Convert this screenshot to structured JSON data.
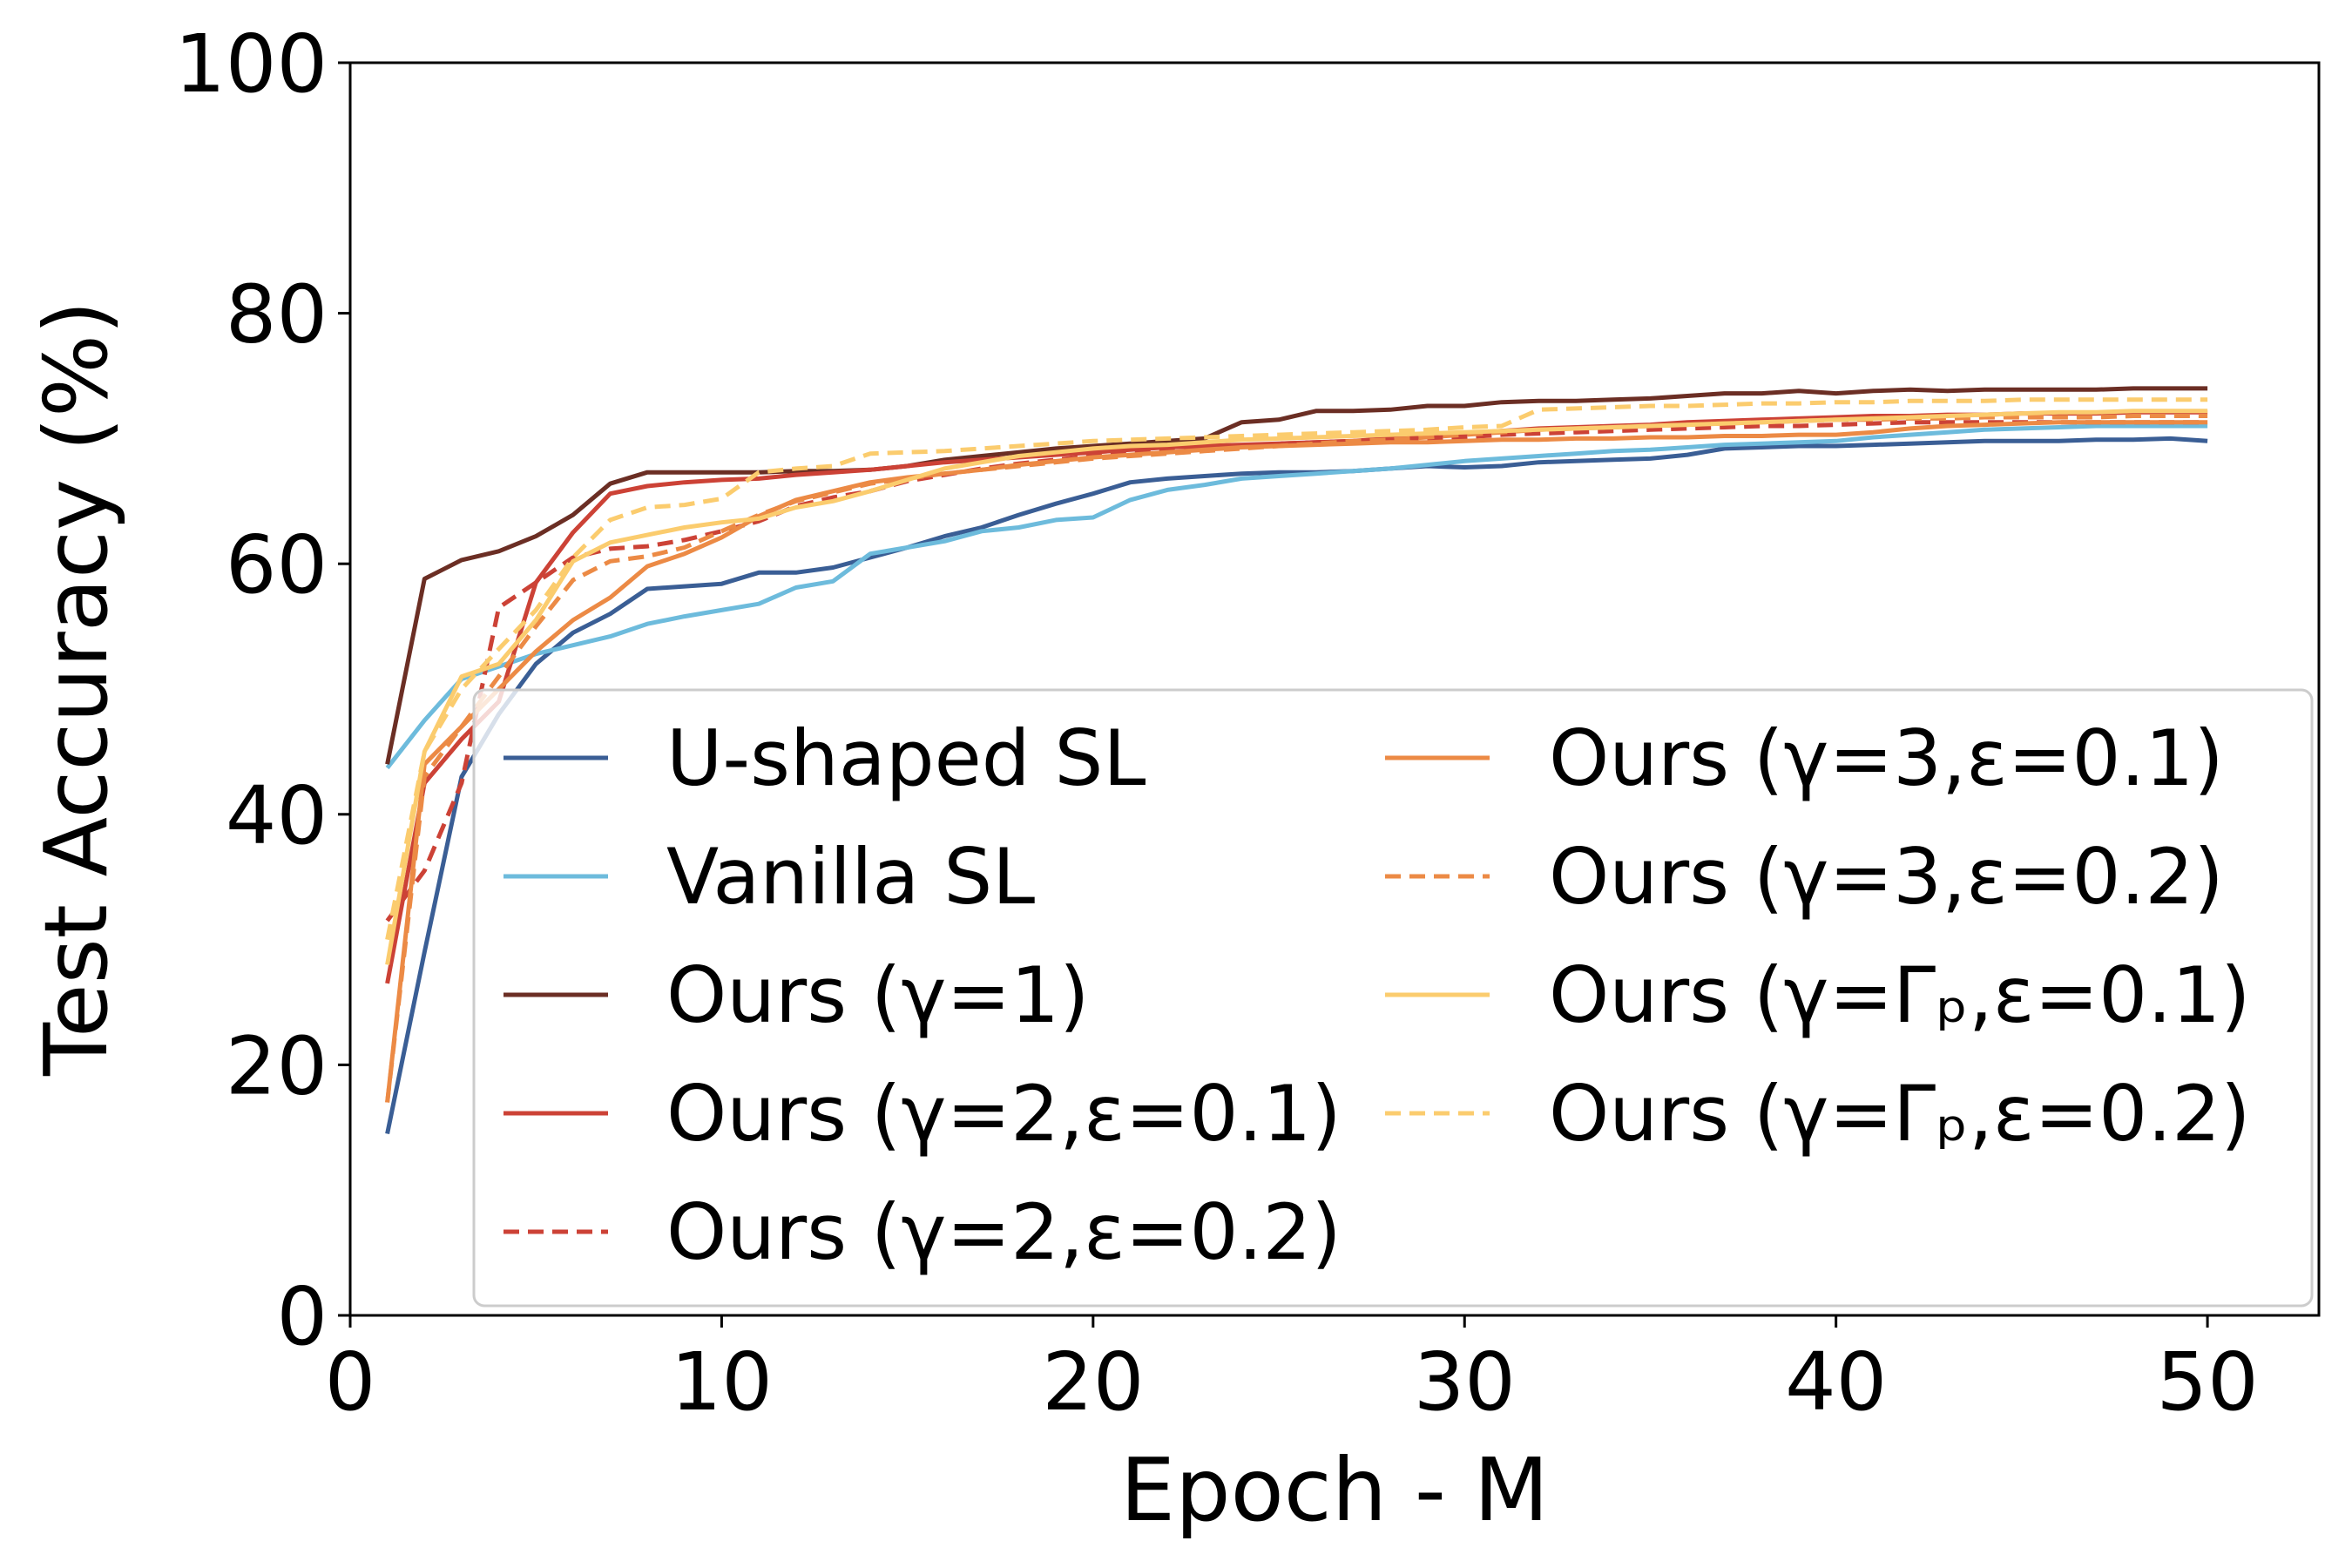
{
  "chart_data": {
    "type": "line",
    "title": "",
    "xlabel": "Epoch - M",
    "ylabel": "Test Accuracy (%)",
    "xlim": [
      0,
      53
    ],
    "ylim": [
      0,
      100
    ],
    "xticks": [
      0,
      10,
      20,
      30,
      40,
      50
    ],
    "yticks": [
      0,
      20,
      40,
      60,
      80,
      100
    ],
    "grid": false,
    "legend_position": "lower-right, two columns",
    "x": [
      1,
      2,
      3,
      4,
      5,
      6,
      7,
      8,
      9,
      10,
      11,
      12,
      13,
      14,
      15,
      16,
      17,
      18,
      19,
      20,
      21,
      22,
      23,
      24,
      25,
      26,
      27,
      28,
      29,
      30,
      31,
      32,
      33,
      34,
      35,
      36,
      37,
      38,
      39,
      40,
      41,
      42,
      43,
      44,
      45,
      46,
      47,
      48,
      49,
      50
    ],
    "series": [
      {
        "name": "U-shaped SL",
        "color": "#3a5e95",
        "dash": "solid",
        "values": [
          14.5,
          29,
          43,
          48,
          52,
          54.5,
          56,
          58,
          58.2,
          58.4,
          59.3,
          59.3,
          59.7,
          60.5,
          61.3,
          62.2,
          62.9,
          63.9,
          64.8,
          65.6,
          66.5,
          66.8,
          67,
          67.2,
          67.3,
          67.3,
          67.4,
          67.6,
          67.8,
          67.7,
          67.8,
          68.1,
          68.2,
          68.3,
          68.4,
          68.7,
          69.2,
          69.3,
          69.4,
          69.4,
          69.5,
          69.6,
          69.7,
          69.8,
          69.8,
          69.8,
          69.9,
          69.9,
          70,
          69.8
        ]
      },
      {
        "name": "Vanilla SL",
        "color": "#6dbbdc",
        "dash": "solid",
        "values": [
          43.7,
          47.5,
          50.8,
          51.8,
          52.8,
          53.5,
          54.2,
          55.2,
          55.8,
          56.3,
          56.8,
          58.1,
          58.6,
          60.8,
          61.3,
          61.8,
          62.6,
          62.9,
          63.5,
          63.7,
          65.1,
          65.9,
          66.3,
          66.8,
          67,
          67.2,
          67.4,
          67.6,
          67.9,
          68.2,
          68.4,
          68.6,
          68.8,
          69,
          69.1,
          69.3,
          69.5,
          69.6,
          69.7,
          69.8,
          70.1,
          70.3,
          70.5,
          70.7,
          70.8,
          70.9,
          71,
          71,
          71,
          71
        ]
      },
      {
        "name": "Ours (γ=1)",
        "color": "#6b2e24",
        "dash": "solid",
        "values": [
          44,
          58.8,
          60.3,
          61,
          62.2,
          63.9,
          66.4,
          67.3,
          67.3,
          67.3,
          67.3,
          67.4,
          67.4,
          67.5,
          67.8,
          68.3,
          68.6,
          68.9,
          69.2,
          69.4,
          69.6,
          69.8,
          70,
          71.3,
          71.5,
          72.2,
          72.2,
          72.3,
          72.6,
          72.6,
          72.9,
          73,
          73,
          73.1,
          73.2,
          73.4,
          73.6,
          73.6,
          73.8,
          73.6,
          73.8,
          73.9,
          73.8,
          73.9,
          73.9,
          73.9,
          73.9,
          74,
          74,
          74
        ]
      },
      {
        "name": "Ours (γ=2,ε=0.1)",
        "color": "#cc4236",
        "dash": "solid",
        "values": [
          26.5,
          42.5,
          46,
          49,
          58.5,
          62.5,
          65.6,
          66.2,
          66.5,
          66.7,
          66.8,
          67.1,
          67.3,
          67.5,
          67.8,
          68.1,
          68.3,
          68.5,
          68.7,
          68.9,
          69.1,
          69.3,
          69.4,
          69.5,
          69.6,
          69.7,
          69.8,
          70,
          70.2,
          70.4,
          70.6,
          70.8,
          70.9,
          71,
          71.1,
          71.3,
          71.4,
          71.5,
          71.6,
          71.7,
          71.8,
          71.8,
          71.9,
          71.9,
          72,
          72,
          72,
          72.1,
          72.1,
          72.1
        ]
      },
      {
        "name": "Ours (γ=2,ε=0.2)",
        "color": "#cc4236",
        "dash": "dashed",
        "values": [
          31.5,
          35.5,
          42.5,
          56.5,
          58.5,
          60.5,
          61.2,
          61.4,
          61.9,
          62.6,
          63.4,
          64.6,
          65.3,
          65.8,
          66.6,
          67.1,
          67.6,
          68,
          68.3,
          68.6,
          68.8,
          69,
          69.2,
          69.4,
          69.6,
          69.7,
          69.8,
          69.9,
          70,
          70.1,
          70.3,
          70.4,
          70.5,
          70.6,
          70.7,
          70.8,
          70.9,
          71,
          71,
          71.1,
          71.2,
          71.3,
          71.3,
          71.3,
          71.3,
          71.3,
          71.3,
          71.3,
          71.3,
          71.3
        ]
      },
      {
        "name": "Ours (γ=3,ε=0.1)",
        "color": "#ec8a45",
        "dash": "solid",
        "values": [
          17,
          44,
          47,
          50,
          53,
          55.5,
          57.3,
          59.8,
          60.8,
          62.1,
          63.8,
          65.1,
          65.8,
          66.5,
          66.9,
          67.2,
          67.5,
          67.9,
          68.2,
          68.5,
          68.7,
          68.9,
          69.1,
          69.3,
          69.4,
          69.5,
          69.6,
          69.7,
          69.7,
          69.8,
          69.9,
          69.9,
          70,
          70,
          70.1,
          70.1,
          70.2,
          70.2,
          70.3,
          70.3,
          70.5,
          70.8,
          71,
          71.1,
          71.2,
          71.3,
          71.3,
          71.3,
          71.3,
          71.3
        ]
      },
      {
        "name": "Ours (γ=3,ε=0.2)",
        "color": "#ec8a45",
        "dash": "dashed",
        "values": [
          17,
          43,
          47,
          51,
          55,
          58.7,
          60.2,
          60.6,
          61.3,
          62.6,
          63.9,
          65,
          65.7,
          66.4,
          66.8,
          67.2,
          67.5,
          67.8,
          68.1,
          68.4,
          68.6,
          68.8,
          69,
          69.2,
          69.4,
          69.6,
          69.8,
          69.9,
          70.1,
          70.3,
          70.5,
          70.7,
          70.8,
          70.9,
          71,
          71.1,
          71.2,
          71.3,
          71.4,
          71.5,
          71.5,
          71.6,
          71.6,
          71.7,
          71.7,
          71.7,
          71.7,
          71.8,
          71.8,
          71.8
        ]
      },
      {
        "name": "Ours (γ=Γₚ,ε=0.1)",
        "color": "#fbcc6e",
        "dash": "solid",
        "values": [
          28,
          45,
          51,
          52,
          55.5,
          60.2,
          61.7,
          62.3,
          62.9,
          63.3,
          63.6,
          64.5,
          65,
          65.8,
          66.7,
          67.6,
          68.1,
          68.6,
          68.9,
          69.2,
          69.4,
          69.5,
          69.7,
          69.9,
          70,
          70.1,
          70.2,
          70.3,
          70.4,
          70.5,
          70.6,
          70.7,
          70.8,
          70.9,
          71,
          71.1,
          71.2,
          71.3,
          71.4,
          71.5,
          71.6,
          71.7,
          71.8,
          71.9,
          72,
          72.1,
          72.1,
          72.2,
          72.2,
          72.2
        ]
      },
      {
        "name": "Ours (γ=Γₚ,ε=0.2)",
        "color": "#fbcc6e",
        "dash": "dashed",
        "values": [
          30,
          45,
          50,
          53.2,
          56.3,
          60.5,
          63.5,
          64.5,
          64.7,
          65.2,
          67.3,
          67.6,
          67.8,
          68.8,
          68.9,
          69,
          69.2,
          69.4,
          69.6,
          69.8,
          69.9,
          70,
          70.1,
          70.2,
          70.3,
          70.4,
          70.5,
          70.6,
          70.7,
          70.9,
          71,
          72.3,
          72.4,
          72.5,
          72.6,
          72.6,
          72.7,
          72.8,
          72.8,
          72.9,
          72.9,
          73,
          73,
          73,
          73.1,
          73.1,
          73.1,
          73.1,
          73.1,
          73.1
        ]
      }
    ]
  }
}
